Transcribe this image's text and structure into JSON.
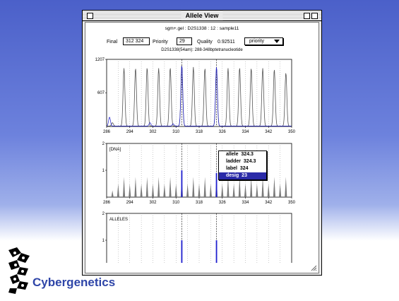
{
  "window": {
    "title": "Allele View"
  },
  "header": {
    "sample_line": "sgm+.gel : D2S1338 : 12 : sample11",
    "locus_line": "D2S1338(54am): 288-348bptetranucleotide"
  },
  "controls": {
    "final_label": "Final",
    "final_value": "312 324",
    "priority_label": "Priority",
    "priority_value": "29",
    "quality_label": "Quality",
    "quality_value": "0.92511",
    "sort_select": "priority"
  },
  "popup": {
    "rows": [
      {
        "label": "allele",
        "value": "324.3"
      },
      {
        "label": "ladder",
        "value": "324.3"
      },
      {
        "label": "label",
        "value": "324"
      },
      {
        "label": "desig",
        "value": "23"
      }
    ]
  },
  "panels": {
    "top": {
      "y_labels": [
        "1207",
        "607"
      ]
    },
    "mid": {
      "tag": "[DNA]",
      "y_labels": [
        "2",
        "1"
      ]
    },
    "bot": {
      "tag": "ALLELES",
      "y_labels": [
        "2",
        "1"
      ]
    }
  },
  "x_ticks": [
    "286",
    "294",
    "302",
    "310",
    "318",
    "326",
    "334",
    "342",
    "350"
  ],
  "brand": {
    "name": "Cybergenetics"
  },
  "colors": {
    "accent": "#1f1fcf",
    "ladder_gray": "#7a7a7a"
  },
  "chart_data": [
    {
      "type": "line",
      "title": "D2S1338(54am): 288-348bptetranucleotide",
      "xlim": [
        286,
        350
      ],
      "ylim": [
        0,
        1207
      ],
      "series": [
        {
          "name": "ladder",
          "x": [
            288,
            292,
            296,
            300,
            304,
            308,
            312,
            316,
            320,
            324,
            328,
            332,
            336,
            340,
            344,
            348
          ],
          "y": [
            60,
            1040,
            1040,
            1050,
            1040,
            1050,
            1100,
            1060,
            1040,
            1050,
            1040,
            1050,
            1040,
            1040,
            1020,
            960
          ]
        },
        {
          "name": "sample",
          "x": [
            287,
            301,
            309,
            312,
            324
          ],
          "y": [
            160,
            60,
            40,
            1090,
            1070
          ]
        }
      ]
    },
    {
      "type": "bar",
      "xlim": [
        286,
        350
      ],
      "ylim": [
        0,
        2
      ],
      "series": [
        {
          "name": "ladder",
          "x": [
            288,
            290,
            292,
            294,
            296,
            298,
            300,
            302,
            304,
            306,
            308,
            310,
            312,
            314,
            316,
            318,
            320,
            322,
            324,
            326,
            328,
            330,
            332,
            334,
            336,
            338,
            340,
            342,
            344,
            346,
            348
          ],
          "y": [
            0.25,
            0.5,
            0.75,
            0.5,
            0.75,
            0.5,
            0.75,
            0.5,
            0.75,
            0.5,
            0.75,
            0.5,
            0.75,
            0.5,
            0.75,
            0.5,
            0.75,
            0.5,
            0.75,
            0.5,
            0.75,
            0.5,
            0.75,
            0.5,
            0.75,
            0.5,
            0.75,
            0.5,
            0.75,
            0.5,
            0.75
          ]
        },
        {
          "name": "sample",
          "x": [
            312,
            324
          ],
          "y": [
            1.0,
            0.9
          ]
        }
      ]
    },
    {
      "type": "bar",
      "xlim": [
        286,
        350
      ],
      "ylim": [
        0,
        2
      ],
      "series": [
        {
          "name": "alleles",
          "x": [
            312,
            324
          ],
          "y": [
            1.0,
            1.0
          ]
        }
      ]
    }
  ]
}
